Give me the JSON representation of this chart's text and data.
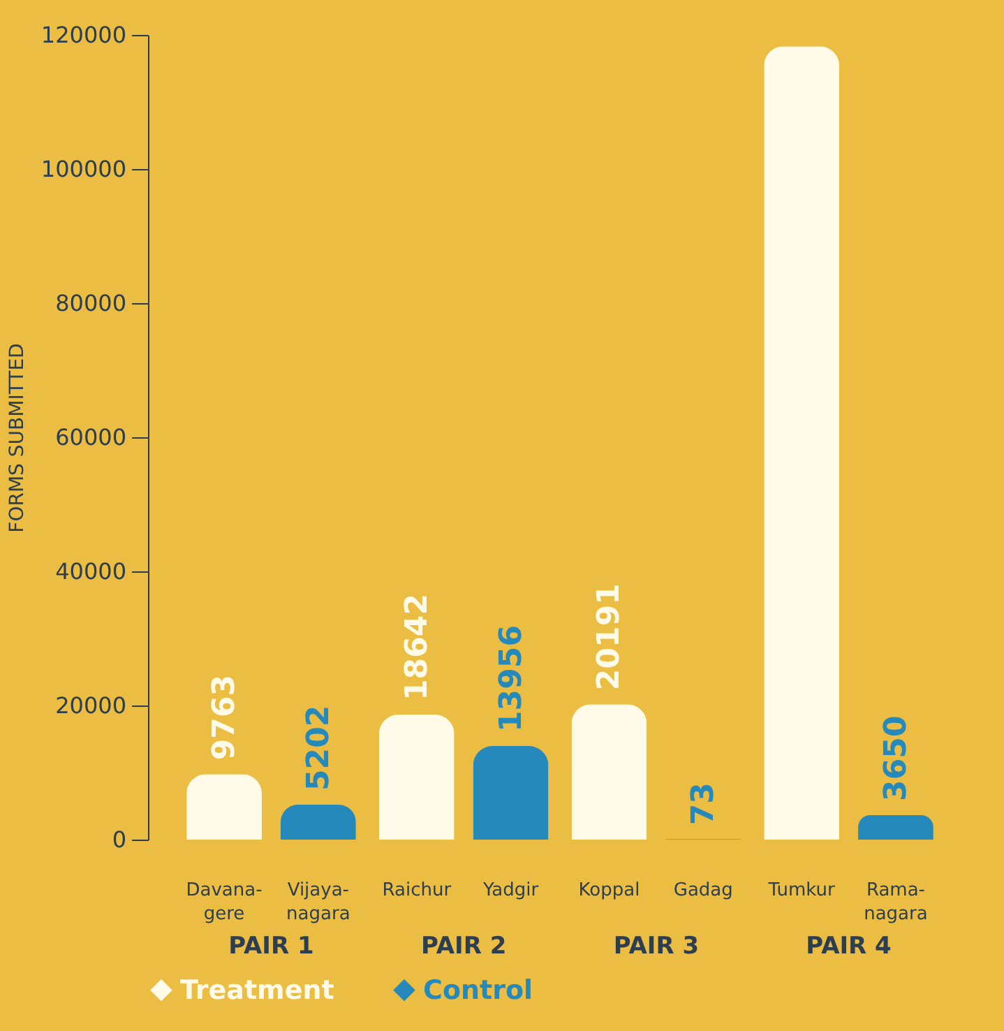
{
  "chart_data": {
    "type": "bar",
    "ylabel": "FORMS SUBMITTED",
    "categories": [
      "PAIR 1",
      "PAIR 2",
      "PAIR 3",
      "PAIR 4"
    ],
    "series": [
      {
        "name": "Treatment",
        "color": "#fffbe8",
        "values": [
          9763,
          18642,
          20191,
          118300
        ],
        "value_labels": [
          "9763",
          "18642",
          "20191",
          null
        ]
      },
      {
        "name": "Control",
        "color": "#2589bb",
        "values": [
          5202,
          13956,
          73,
          3650
        ],
        "value_labels": [
          "5202",
          "13956",
          "73",
          "3650"
        ]
      }
    ],
    "ylim": [
      0,
      120000
    ],
    "yticks": [
      0,
      20000,
      40000,
      60000,
      80000,
      100000,
      120000
    ],
    "grid": false,
    "legend": "bottom",
    "annotations": [
      "Davana-gere",
      "Vijaya-nagara",
      "Raichur",
      "Yadgir",
      "Koppal",
      "Gadag",
      "Tumkur",
      "Rama-nagara"
    ]
  }
}
